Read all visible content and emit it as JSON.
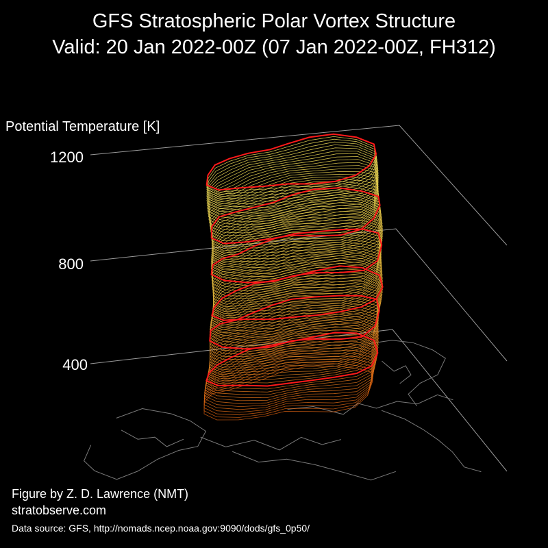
{
  "header": {
    "title_line1": "GFS Stratospheric Polar Vortex Structure",
    "title_line2": "Valid: 20 Jan 2022-00Z  (07 Jan 2022-00Z, FH312)"
  },
  "chart_data": {
    "type": "3d-isosurface",
    "zlabel": "Potential Temperature [K]",
    "zticks": [
      "400",
      "800",
      "1200"
    ],
    "zlim": [
      300,
      1400
    ],
    "grid": true,
    "highlighted_levels_K": [
      450,
      600,
      700,
      850,
      1000,
      1200
    ],
    "colors": {
      "contour_low": "#d65f10",
      "contour_mid": "#e0b43a",
      "contour_high": "#f0e05a",
      "highlight": "#ff1a1a",
      "coastline": "#7a7a7a",
      "axis_lines": "#9a9a9a"
    }
  },
  "footer": {
    "author": "Figure by Z. D. Lawrence (NMT)",
    "website": "stratobserve.com",
    "source": "Data source: GFS, http://nomads.ncep.noaa.gov:9090/dods/gfs_0p50/"
  }
}
